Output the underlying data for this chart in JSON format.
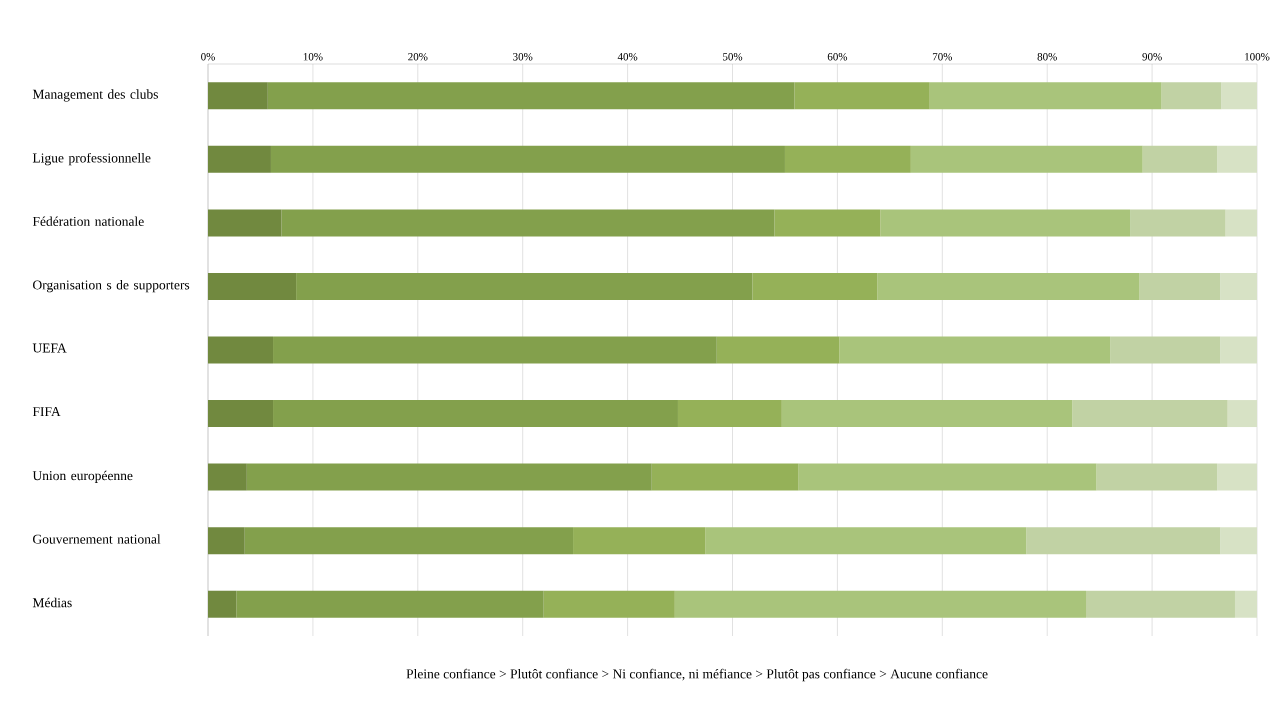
{
  "chart_data": {
    "type": "bar",
    "orientation": "horizontal",
    "stacked": true,
    "categories": [
      "Management  des clubs",
      "Ligue professionnelle",
      "Fédération nationale",
      "Organisation s de supporters",
      "UEFA",
      "FIFA",
      "Union européenne",
      "Gouvernement national",
      "Médias"
    ],
    "series": [
      {
        "color": "#71893f",
        "values": [
          5.7,
          6.0,
          7.0,
          8.4,
          6.2,
          6.2,
          3.7,
          3.5,
          2.7
        ]
      },
      {
        "color": "#83a04c",
        "values": [
          50.2,
          49.0,
          47.0,
          43.5,
          42.3,
          38.6,
          38.6,
          31.3,
          29.3
        ]
      },
      {
        "color": "#95b158",
        "values": [
          12.9,
          12.0,
          10.1,
          11.9,
          11.7,
          9.9,
          14.0,
          12.6,
          12.5
        ]
      },
      {
        "color": "#a9c47b",
        "values": [
          22.1,
          22.1,
          23.8,
          25.0,
          25.8,
          27.7,
          28.4,
          30.6,
          39.2
        ]
      },
      {
        "color": "#c1d2a4",
        "values": [
          5.7,
          7.1,
          9.1,
          7.7,
          10.5,
          14.8,
          11.5,
          18.5,
          14.2
        ]
      },
      {
        "color": "#d7e2c5",
        "values": [
          3.4,
          3.8,
          3.0,
          3.5,
          3.5,
          2.8,
          3.8,
          3.5,
          2.1
        ]
      }
    ],
    "xlim": [
      0,
      100
    ],
    "xticks": [
      {
        "value": 0,
        "label": "0%"
      },
      {
        "value": 10,
        "label": "10%"
      },
      {
        "value": 20,
        "label": "20%"
      },
      {
        "value": 30,
        "label": "30%"
      },
      {
        "value": 40,
        "label": "40%"
      },
      {
        "value": 50,
        "label": "50%"
      },
      {
        "value": 60,
        "label": "60%"
      },
      {
        "value": 70,
        "label": "70%"
      },
      {
        "value": 80,
        "label": "80%"
      },
      {
        "value": 90,
        "label": "90%"
      },
      {
        "value": 100,
        "label": "100%"
      }
    ],
    "grid": "x",
    "annotations": [
      "Pleine confiance  >  Plutôt confiance  >  Ni confiance, ni méfiance  >  Plutôt pas confiance  >  Aucune confiance"
    ]
  }
}
